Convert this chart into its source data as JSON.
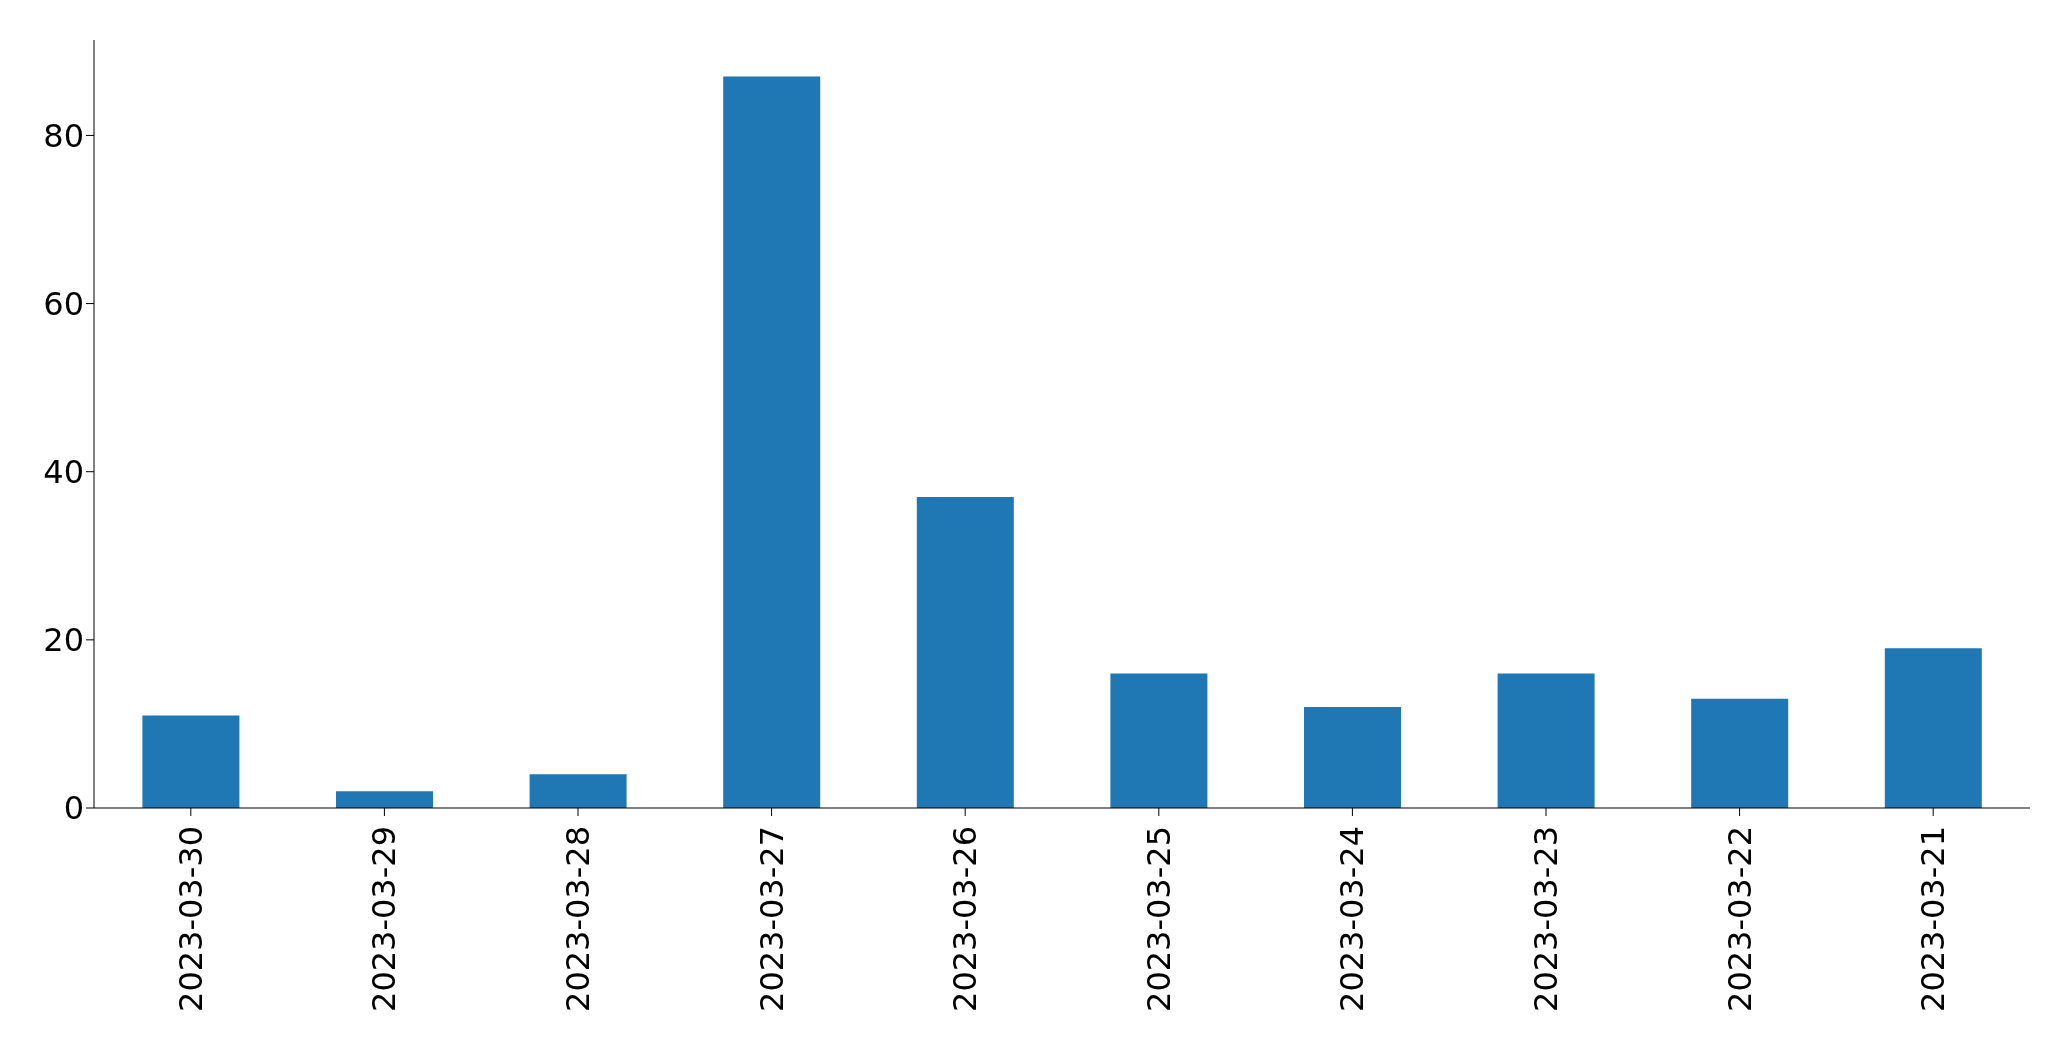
{
  "chart_data": {
    "type": "bar",
    "categories": [
      "2023-03-30",
      "2023-03-29",
      "2023-03-28",
      "2023-03-27",
      "2023-03-26",
      "2023-03-25",
      "2023-03-24",
      "2023-03-23",
      "2023-03-22",
      "2023-03-21"
    ],
    "values": [
      11,
      2,
      4,
      87,
      37,
      16,
      12,
      16,
      13,
      19
    ],
    "color": "#1f77b4",
    "ylim": [
      0,
      91.35
    ],
    "yticks": [
      0,
      20,
      40,
      60,
      80
    ]
  }
}
